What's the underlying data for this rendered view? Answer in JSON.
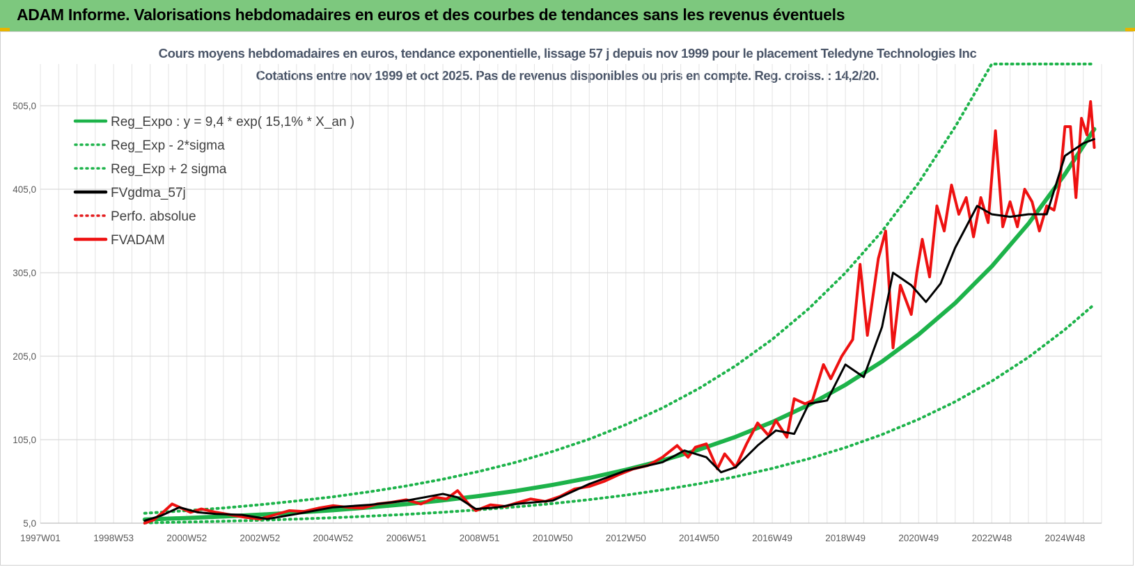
{
  "page": {
    "banner_title": "ADAM Informe. Valorisations hebdomadaires en euros et des courbes de tendances sans les revenus éventuels",
    "banner_color": "#7dc87e"
  },
  "chart_data": {
    "type": "line",
    "title": "Cours moyens hebdomadaires en euros, tendance exponentielle, lissage 57 j depuis nov 1999 pour le placement Teledyne Technologies Inc",
    "subtitle": "Cotations entre nov 1999 et oct 2025. Pas de revenus disponibles ou pris en compte. Reg. croiss. : 14,2/20.",
    "xlabel": "",
    "ylabel": "",
    "xlim": [
      1997.0,
      2026.0
    ],
    "ylim": [
      5.0,
      555.0
    ],
    "grid": true,
    "legend_position": "top-left",
    "y_ticks": [
      "5,0",
      "105,0",
      "205,0",
      "305,0",
      "405,0",
      "505,0"
    ],
    "y_tick_values": [
      5,
      105,
      205,
      305,
      405,
      505
    ],
    "x_ticks": [
      "1997W01",
      "1998W53",
      "2000W52",
      "2002W52",
      "2004W52",
      "2006W51",
      "2008W51",
      "2010W50",
      "2012W50",
      "2014W50",
      "2016W49",
      "2018W49",
      "2020W49",
      "2022W48",
      "2024W48"
    ],
    "x_tick_values": [
      1997.0,
      1999.0,
      2001.0,
      2003.0,
      2005.0,
      2007.0,
      2009.0,
      2011.0,
      2013.0,
      2015.0,
      2017.0,
      2019.0,
      2021.0,
      2023.0,
      2025.0
    ],
    "series": [
      {
        "name": "Reg_Expo : y = 9,4 * exp( 15,1% *  X_an )",
        "color": "#1db34a",
        "style": "solid",
        "width": 6,
        "x": [
          1999.85,
          2001,
          2002,
          2003,
          2004,
          2005,
          2006,
          2007,
          2008,
          2009,
          2010,
          2011,
          2012,
          2013,
          2014,
          2015,
          2016,
          2017,
          2018,
          2019,
          2020,
          2021,
          2022,
          2023,
          2024,
          2025,
          2025.8
        ],
        "values": [
          9.4,
          11.2,
          13.0,
          15.2,
          17.7,
          20.5,
          23.9,
          27.8,
          32.3,
          37.6,
          43.7,
          50.9,
          59.2,
          68.9,
          80.1,
          93.2,
          108.4,
          126.1,
          146.7,
          170.7,
          198.6,
          231.0,
          268.7,
          312.6,
          363.7,
          423.1,
          477.0
        ]
      },
      {
        "name": "Reg_Exp - 2*sigma",
        "color": "#1db34a",
        "style": "dotted",
        "width": 4,
        "x": [
          1999.85,
          2001,
          2002,
          2003,
          2004,
          2005,
          2006,
          2007,
          2008,
          2009,
          2010,
          2011,
          2012,
          2013,
          2014,
          2015,
          2016,
          2017,
          2018,
          2019,
          2020,
          2021,
          2022,
          2023,
          2024,
          2025,
          2025.8
        ],
        "values": [
          5.3,
          6.3,
          7.3,
          8.5,
          9.9,
          11.5,
          13.4,
          15.6,
          18.1,
          21.1,
          24.5,
          28.5,
          33.2,
          38.6,
          44.9,
          52.2,
          60.7,
          70.6,
          82.2,
          95.6,
          111.2,
          129.4,
          150.5,
          175.1,
          203.7,
          236.9,
          267.0
        ]
      },
      {
        "name": "Reg_Exp + 2 sigma",
        "color": "#1db34a",
        "style": "dotted",
        "width": 4,
        "x": [
          1999.85,
          2001,
          2002,
          2003,
          2004,
          2005,
          2006,
          2007,
          2008,
          2009,
          2010,
          2011,
          2012,
          2013,
          2014,
          2015,
          2016,
          2017,
          2018,
          2019,
          2020,
          2021,
          2022,
          2023,
          2024,
          2025,
          2025.8
        ],
        "values": [
          16.8,
          20.0,
          23.2,
          27.1,
          31.6,
          36.6,
          42.7,
          49.6,
          57.7,
          67.1,
          78.0,
          90.9,
          105.7,
          123.0,
          143.0,
          166.4,
          193.6,
          225.2,
          262.0,
          304.8,
          354.6,
          412.5,
          479.8,
          555.0,
          555.0,
          555.0,
          555.0
        ]
      },
      {
        "name": "FVgdma_57j",
        "color": "#000000",
        "style": "solid",
        "width": 3,
        "x": [
          1999.85,
          2000.3,
          2000.8,
          2001.3,
          2001.8,
          2002.5,
          2003.2,
          2004.0,
          2005.0,
          2006.0,
          2007.0,
          2008.0,
          2008.4,
          2008.9,
          2009.5,
          2010.0,
          2011.0,
          2012.0,
          2013.0,
          2014.0,
          2014.6,
          2015.2,
          2015.6,
          2016.0,
          2016.6,
          2017.1,
          2017.6,
          2018.0,
          2018.5,
          2019.0,
          2019.5,
          2020.0,
          2020.3,
          2020.8,
          2021.2,
          2021.6,
          2022.0,
          2022.6,
          2023.0,
          2023.5,
          2024.0,
          2024.5,
          2025.0,
          2025.5,
          2025.8
        ],
        "values": [
          8,
          14,
          24,
          18,
          16,
          15,
          10,
          16,
          24,
          27,
          32,
          40,
          36,
          22,
          24,
          28,
          32,
          52,
          68,
          78,
          92,
          84,
          66,
          72,
          98,
          116,
          112,
          148,
          152,
          195,
          180,
          240,
          305,
          290,
          270,
          292,
          335,
          385,
          375,
          372,
          375,
          375,
          445,
          460,
          465
        ]
      },
      {
        "name": "Perfo. absolue",
        "color": "#e31a1c",
        "style": "dotted",
        "width": 3,
        "x": [],
        "values": []
      },
      {
        "name": "FVADAM",
        "color": "#ee1111",
        "style": "solid",
        "width": 4,
        "x": [
          1999.85,
          2000.1,
          2000.4,
          2000.6,
          2000.9,
          2001.1,
          2001.4,
          2001.8,
          2002.2,
          2002.6,
          2003.0,
          2003.4,
          2003.8,
          2004.2,
          2004.6,
          2005.0,
          2005.4,
          2005.8,
          2006.2,
          2006.6,
          2007.0,
          2007.4,
          2007.8,
          2008.1,
          2008.4,
          2008.7,
          2008.9,
          2009.3,
          2009.7,
          2010.0,
          2010.4,
          2010.8,
          2011.2,
          2011.6,
          2012.0,
          2012.4,
          2012.8,
          2013.2,
          2013.6,
          2014.0,
          2014.4,
          2014.7,
          2014.9,
          2015.2,
          2015.5,
          2015.7,
          2016.0,
          2016.3,
          2016.6,
          2016.9,
          2017.1,
          2017.4,
          2017.6,
          2017.9,
          2018.1,
          2018.4,
          2018.6,
          2018.9,
          2019.2,
          2019.4,
          2019.6,
          2019.9,
          2020.1,
          2020.3,
          2020.5,
          2020.8,
          2020.95,
          2021.1,
          2021.3,
          2021.5,
          2021.7,
          2021.9,
          2022.1,
          2022.3,
          2022.5,
          2022.7,
          2022.9,
          2023.1,
          2023.3,
          2023.5,
          2023.7,
          2023.9,
          2024.1,
          2024.3,
          2024.5,
          2024.7,
          2024.85,
          2025.0,
          2025.15,
          2025.3,
          2025.45,
          2025.6,
          2025.7,
          2025.8
        ],
        "values": [
          5,
          9,
          20,
          28,
          22,
          18,
          22,
          18,
          15,
          12,
          10,
          15,
          20,
          19,
          23,
          26,
          24,
          23,
          28,
          30,
          33,
          28,
          36,
          34,
          44,
          28,
          20,
          27,
          25,
          29,
          34,
          31,
          37,
          46,
          49,
          55,
          63,
          70,
          74,
          84,
          98,
          84,
          96,
          100,
          70,
          88,
          72,
          100,
          125,
          110,
          128,
          108,
          154,
          148,
          152,
          195,
          178,
          205,
          225,
          315,
          230,
          322,
          355,
          215,
          290,
          255,
          305,
          345,
          300,
          385,
          355,
          410,
          375,
          395,
          348,
          395,
          365,
          475,
          360,
          390,
          360,
          405,
          390,
          355,
          385,
          380,
          410,
          480,
          480,
          395,
          490,
          470,
          510,
          455
        ]
      }
    ]
  }
}
